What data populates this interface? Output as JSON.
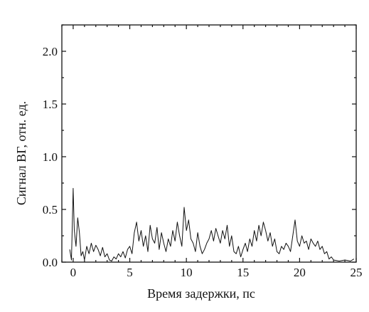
{
  "chart_data": {
    "type": "line",
    "title": "",
    "xlabel": "Время задержки, пс",
    "ylabel": "Сигнал ВГ, отн. ед.",
    "xlim": [
      -1,
      25
    ],
    "ylim": [
      0,
      2.25
    ],
    "x_ticks": [
      0,
      5,
      10,
      15,
      20,
      25
    ],
    "x_tick_labels": [
      "0",
      "5",
      "10",
      "15",
      "20",
      "25"
    ],
    "y_ticks": [
      0.0,
      0.5,
      1.0,
      1.5,
      2.0
    ],
    "y_tick_labels": [
      "0.0",
      "0.5",
      "1.0",
      "1.5",
      "2.0"
    ],
    "grid": false,
    "legend": "none",
    "line_color": "#111111",
    "series": [
      {
        "x": [
          -0.3,
          -0.15,
          0.0,
          0.1,
          0.25,
          0.4,
          0.55,
          0.7,
          0.85,
          1.0,
          1.2,
          1.4,
          1.6,
          1.8,
          2.0,
          2.2,
          2.4,
          2.6,
          2.8,
          3.0,
          3.2,
          3.4,
          3.6,
          3.8,
          4.0,
          4.2,
          4.4,
          4.6,
          4.8,
          5.0,
          5.2,
          5.4,
          5.6,
          5.8,
          6.0,
          6.2,
          6.4,
          6.6,
          6.8,
          7.0,
          7.2,
          7.4,
          7.6,
          7.8,
          8.0,
          8.2,
          8.4,
          8.6,
          8.8,
          9.0,
          9.2,
          9.4,
          9.6,
          9.8,
          10.0,
          10.2,
          10.4,
          10.6,
          10.8,
          11.0,
          11.2,
          11.4,
          11.6,
          11.8,
          12.0,
          12.2,
          12.4,
          12.6,
          12.8,
          13.0,
          13.2,
          13.4,
          13.6,
          13.8,
          14.0,
          14.2,
          14.4,
          14.6,
          14.8,
          15.0,
          15.2,
          15.4,
          15.6,
          15.8,
          16.0,
          16.2,
          16.4,
          16.6,
          16.8,
          17.0,
          17.2,
          17.4,
          17.6,
          17.8,
          18.0,
          18.2,
          18.4,
          18.6,
          18.8,
          19.0,
          19.2,
          19.4,
          19.6,
          19.8,
          20.0,
          20.2,
          20.4,
          20.6,
          20.8,
          21.0,
          21.2,
          21.4,
          21.6,
          21.8,
          22.0,
          22.2,
          22.4,
          22.6,
          22.8,
          23.0,
          23.5,
          24.0,
          24.5,
          24.8
        ],
        "y": [
          0.12,
          0.02,
          0.7,
          0.3,
          0.15,
          0.42,
          0.28,
          0.06,
          0.1,
          0.02,
          0.15,
          0.08,
          0.18,
          0.1,
          0.16,
          0.12,
          0.06,
          0.14,
          0.05,
          0.08,
          0.02,
          0.01,
          0.05,
          0.03,
          0.08,
          0.05,
          0.1,
          0.04,
          0.12,
          0.15,
          0.08,
          0.28,
          0.38,
          0.2,
          0.3,
          0.15,
          0.25,
          0.1,
          0.35,
          0.22,
          0.18,
          0.33,
          0.12,
          0.28,
          0.18,
          0.1,
          0.22,
          0.15,
          0.3,
          0.2,
          0.38,
          0.25,
          0.15,
          0.52,
          0.3,
          0.4,
          0.22,
          0.18,
          0.1,
          0.28,
          0.15,
          0.08,
          0.12,
          0.18,
          0.22,
          0.3,
          0.2,
          0.32,
          0.25,
          0.18,
          0.3,
          0.22,
          0.35,
          0.15,
          0.25,
          0.1,
          0.08,
          0.15,
          0.05,
          0.12,
          0.18,
          0.1,
          0.22,
          0.15,
          0.3,
          0.2,
          0.35,
          0.25,
          0.38,
          0.3,
          0.2,
          0.28,
          0.15,
          0.22,
          0.1,
          0.08,
          0.15,
          0.12,
          0.18,
          0.15,
          0.1,
          0.25,
          0.4,
          0.2,
          0.15,
          0.25,
          0.18,
          0.2,
          0.12,
          0.22,
          0.18,
          0.15,
          0.2,
          0.12,
          0.15,
          0.08,
          0.1,
          0.03,
          0.05,
          0.02,
          0.01,
          0.02,
          0.01,
          0.03
        ]
      }
    ]
  }
}
